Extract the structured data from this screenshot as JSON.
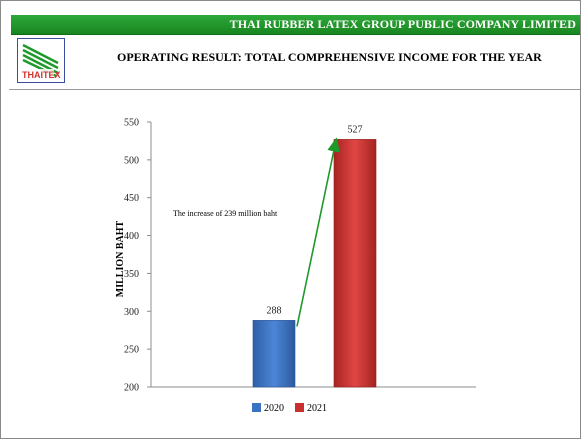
{
  "header": {
    "company": "THAI RUBBER LATEX GROUP PUBLIC COMPANY LIMITED",
    "title": "OPERATING RESULT: TOTAL COMPREHENSIVE INCOME FOR THE YEAR",
    "logo_text": "THAITEX"
  },
  "colors": {
    "brand_green": "#1e9a2a",
    "bar_2020": "#3b73c4",
    "bar_2021": "#c8302f",
    "arrow": "#1e9a2a"
  },
  "chart_data": {
    "type": "bar",
    "categories": [
      "2020",
      "2021"
    ],
    "series": [
      {
        "name": "2020",
        "values": [
          288,
          null
        ]
      },
      {
        "name": "2021",
        "values": [
          null,
          527
        ]
      }
    ],
    "values": [
      288,
      527
    ],
    "data_labels": [
      "288",
      "527"
    ],
    "ylabel": "MILLION BAHT",
    "xlabel": "",
    "title": "",
    "ylim": [
      200,
      550
    ],
    "yticks": [
      200,
      250,
      300,
      350,
      400,
      450,
      500,
      550
    ],
    "grid": false,
    "legend": {
      "position": "bottom",
      "entries": [
        "2020",
        "2021"
      ]
    },
    "annotation": "The increase  of 239 million  baht",
    "annotation_arrow": {
      "from_category": "2020",
      "to_category": "2021"
    }
  }
}
